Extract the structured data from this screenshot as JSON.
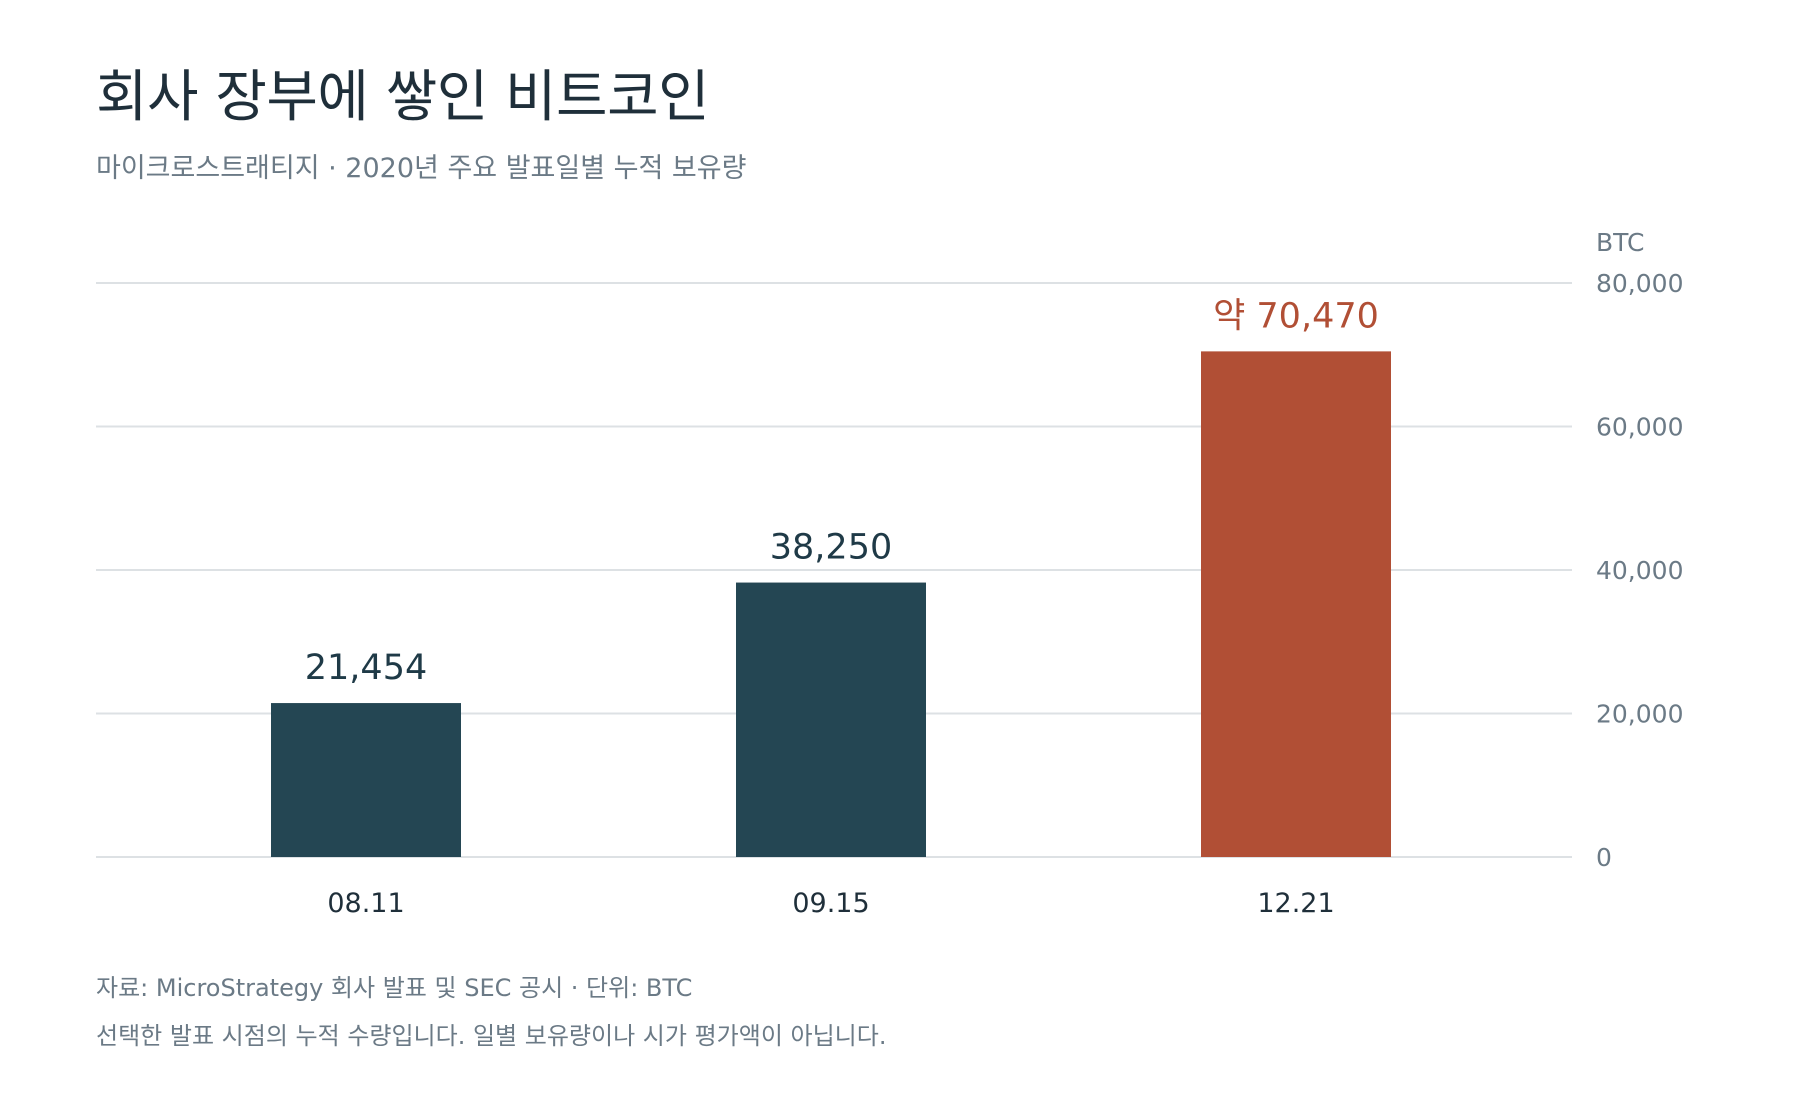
{
  "header": {
    "title": "회사 장부에 쌓인 비트코인",
    "subtitle": "마이크로스트래티지 · 2020년 주요 발표일별 누적 보유량"
  },
  "chart_data": {
    "type": "bar",
    "categories": [
      "08.11",
      "09.15",
      "12.21"
    ],
    "values": [
      21454,
      38250,
      70470
    ],
    "value_labels": [
      "21,454",
      "38,250",
      "약 70,470"
    ],
    "bar_colors": [
      "#244653",
      "#244653",
      "#b14f35"
    ],
    "label_colors": [
      "#1f3a47",
      "#1f3a47",
      "#b14f35"
    ],
    "y_unit_label": "BTC",
    "ylim": [
      0,
      80000
    ],
    "y_ticks": [
      0,
      20000,
      40000,
      60000,
      80000
    ],
    "y_tick_labels": [
      "0",
      "20,000",
      "40,000",
      "60,000",
      "80,000"
    ],
    "y_axis_position": "right",
    "grid": true,
    "gridline_color": "#dde1e4",
    "tick_color": "#6b7a86",
    "category_color": "#1f2f3a"
  },
  "footer": {
    "source": "자료: MicroStrategy 회사 발표 및 SEC 공시 · 단위: BTC",
    "note": "선택한 발표 시점의 누적 수량입니다. 일별 보유량이나 시가 평가액이 아닙니다."
  }
}
